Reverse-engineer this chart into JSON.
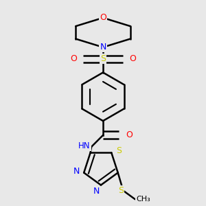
{
  "bg_color": "#e8e8e8",
  "atom_colors": {
    "C": "#000000",
    "N": "#0000ff",
    "O": "#ff0000",
    "S": "#cccc00",
    "H": "#708090"
  },
  "bond_color": "#000000",
  "bond_width": 1.8,
  "figsize": [
    3.0,
    3.0
  ],
  "dpi": 100
}
